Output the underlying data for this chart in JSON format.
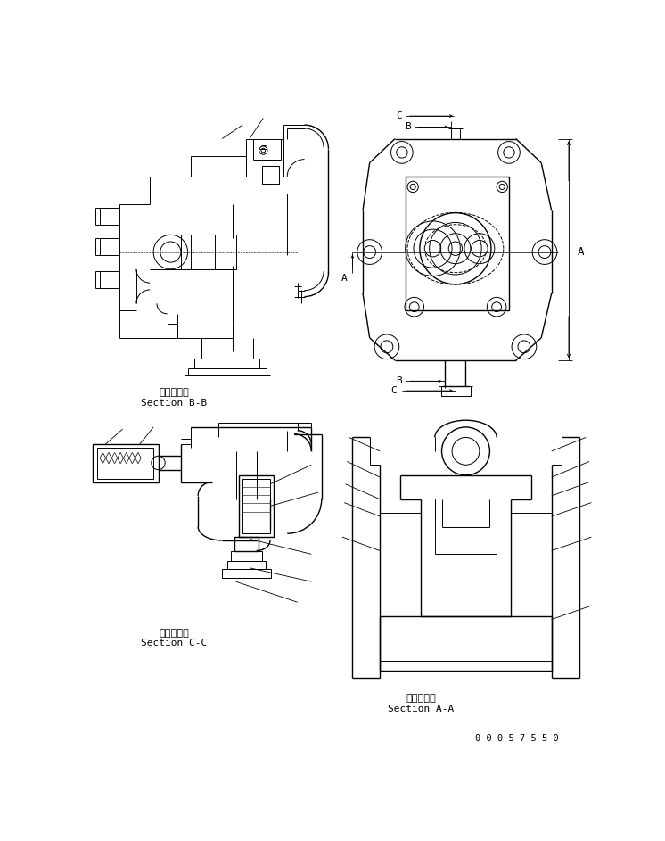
{
  "background_color": "#ffffff",
  "line_color": "#000000",
  "fig_width": 7.46,
  "fig_height": 9.43,
  "dpi": 100,
  "labels": {
    "section_bb_jp": "断面Ｂ－Ｂ",
    "section_bb_en": "Section B-B",
    "section_cc_jp": "断面Ｃ－Ｃ",
    "section_cc_en": "Section C-C",
    "section_aa_jp": "断面Ａ－Ａ",
    "section_aa_en": "Section A-A",
    "part_number": "0 0 0 5 7 5 5 0"
  }
}
